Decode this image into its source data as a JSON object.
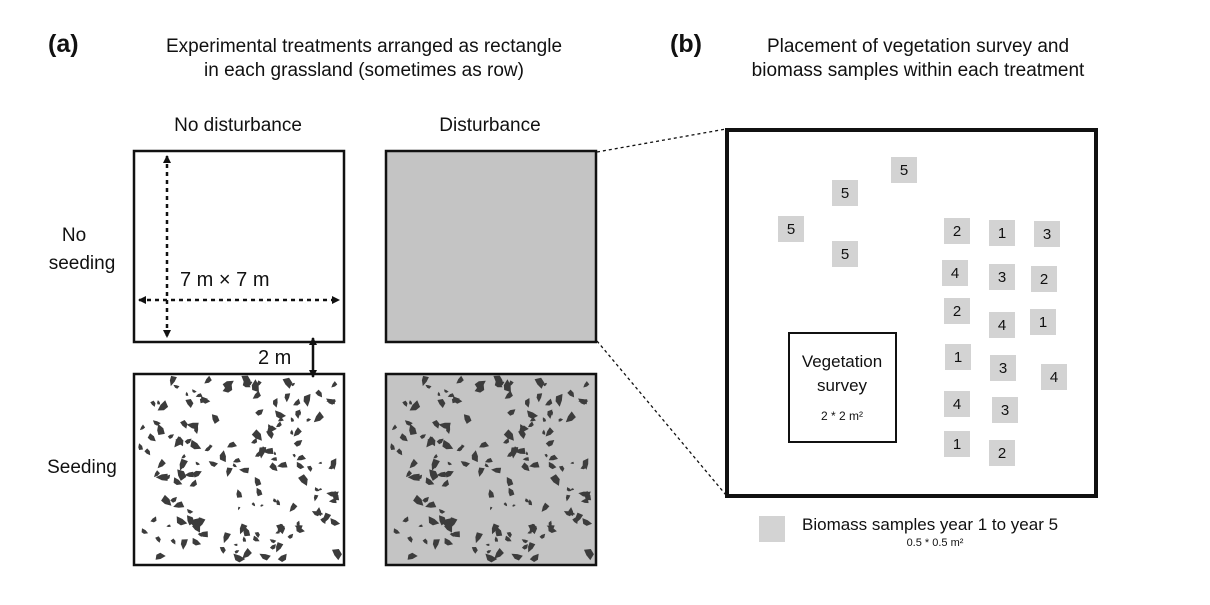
{
  "panel_a": {
    "label": "(a)",
    "title_line1": "Experimental treatments arranged as rectangle",
    "title_line2": "in each grassland (sometimes as row)",
    "col_no_disturbance": "No disturbance",
    "col_disturbance": "Disturbance",
    "row_no_seeding_line1": "No",
    "row_no_seeding_line2": "seeding",
    "row_seeding": "Seeding",
    "plot_size": "7 m × 7 m",
    "gap": "2 m",
    "colors": {
      "plot_gray": "#c4c4c4",
      "seed": "#3c3c3c",
      "border": "#111111"
    }
  },
  "panel_b": {
    "label": "(b)",
    "title_line1": "Placement of vegetation survey and",
    "title_line2": "biomass samples within each treatment",
    "vegetation_line1": "Vegetation",
    "vegetation_line2": "survey",
    "vegetation_size": "2 * 2 m²",
    "samples": [
      "5",
      "5",
      "5",
      "5",
      "2",
      "1",
      "3",
      "4",
      "3",
      "2",
      "2",
      "4",
      "1",
      "1",
      "3",
      "4",
      "4",
      "3",
      "1",
      "2"
    ],
    "legend_label": "Biomass samples year  1 to year  5",
    "legend_size": "0.5 * 0.5 m²",
    "colors": {
      "sample": "#d3d3d3"
    }
  }
}
